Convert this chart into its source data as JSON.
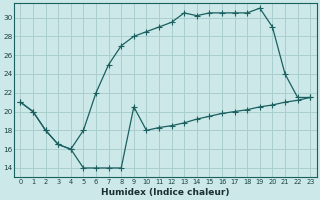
{
  "xlabel": "Humidex (Indice chaleur)",
  "ylabel": "",
  "bg_color": "#cce8e8",
  "grid_color": "#aacfcf",
  "line_color": "#1a6060",
  "xlim": [
    -0.5,
    23.5
  ],
  "ylim": [
    13.0,
    31.5
  ],
  "yticks": [
    14,
    16,
    18,
    20,
    22,
    24,
    26,
    28,
    30
  ],
  "xticks": [
    0,
    1,
    2,
    3,
    4,
    5,
    6,
    7,
    8,
    9,
    10,
    11,
    12,
    13,
    14,
    15,
    16,
    17,
    18,
    19,
    20,
    21,
    22,
    23
  ],
  "line1_x": [
    0,
    1,
    2,
    3,
    4,
    5,
    6,
    7,
    8,
    9,
    10,
    11,
    12,
    13,
    14,
    15,
    16,
    17,
    18,
    19,
    20,
    21,
    22,
    23
  ],
  "line1_y": [
    21.0,
    20.0,
    18.0,
    16.5,
    16.0,
    14.0,
    14.0,
    14.0,
    14.0,
    20.5,
    18.0,
    18.3,
    18.5,
    18.8,
    19.2,
    19.5,
    19.8,
    20.0,
    20.2,
    20.5,
    20.7,
    21.0,
    21.2,
    21.5
  ],
  "line2_x": [
    0,
    1,
    2,
    3,
    4,
    5,
    6,
    7,
    8,
    9,
    10,
    11,
    12,
    13,
    14,
    15,
    16,
    17,
    18,
    19,
    20,
    21,
    22,
    23
  ],
  "line2_y": [
    21.0,
    20.0,
    18.0,
    16.5,
    16.0,
    18.0,
    22.0,
    25.0,
    27.0,
    28.0,
    28.5,
    29.0,
    29.5,
    30.5,
    30.2,
    30.5,
    30.5,
    30.5,
    30.5,
    31.0,
    29.0,
    24.0,
    21.5,
    21.5
  ]
}
